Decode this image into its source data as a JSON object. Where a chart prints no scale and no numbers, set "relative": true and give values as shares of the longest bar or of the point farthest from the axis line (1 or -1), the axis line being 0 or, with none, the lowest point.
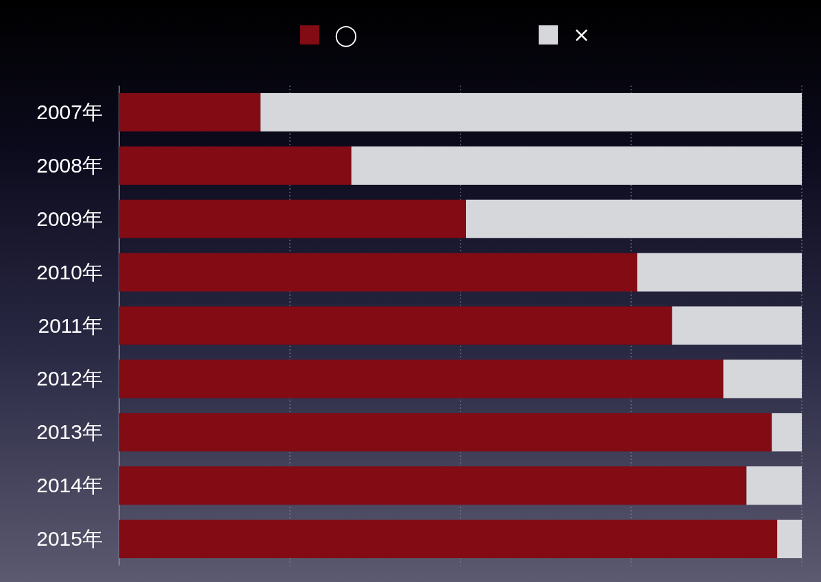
{
  "chart_data": {
    "type": "bar",
    "orientation": "horizontal",
    "stacked": true,
    "relative": true,
    "grid": "x",
    "legend": "top",
    "categories": [
      "2007年",
      "2008年",
      "2009年",
      "2010年",
      "2011年",
      "2012年",
      "2013年",
      "2014年",
      "2015年"
    ],
    "series": [
      {
        "name": "◯",
        "color": "#820b14",
        "values": [
          0.207,
          0.34,
          0.508,
          0.759,
          0.81,
          0.885,
          0.956,
          0.919,
          0.964
        ]
      },
      {
        "name": "×",
        "color": "#d6d7db",
        "values": [
          0.793,
          0.66,
          0.492,
          0.241,
          0.19,
          0.115,
          0.044,
          0.081,
          0.036
        ]
      }
    ]
  }
}
